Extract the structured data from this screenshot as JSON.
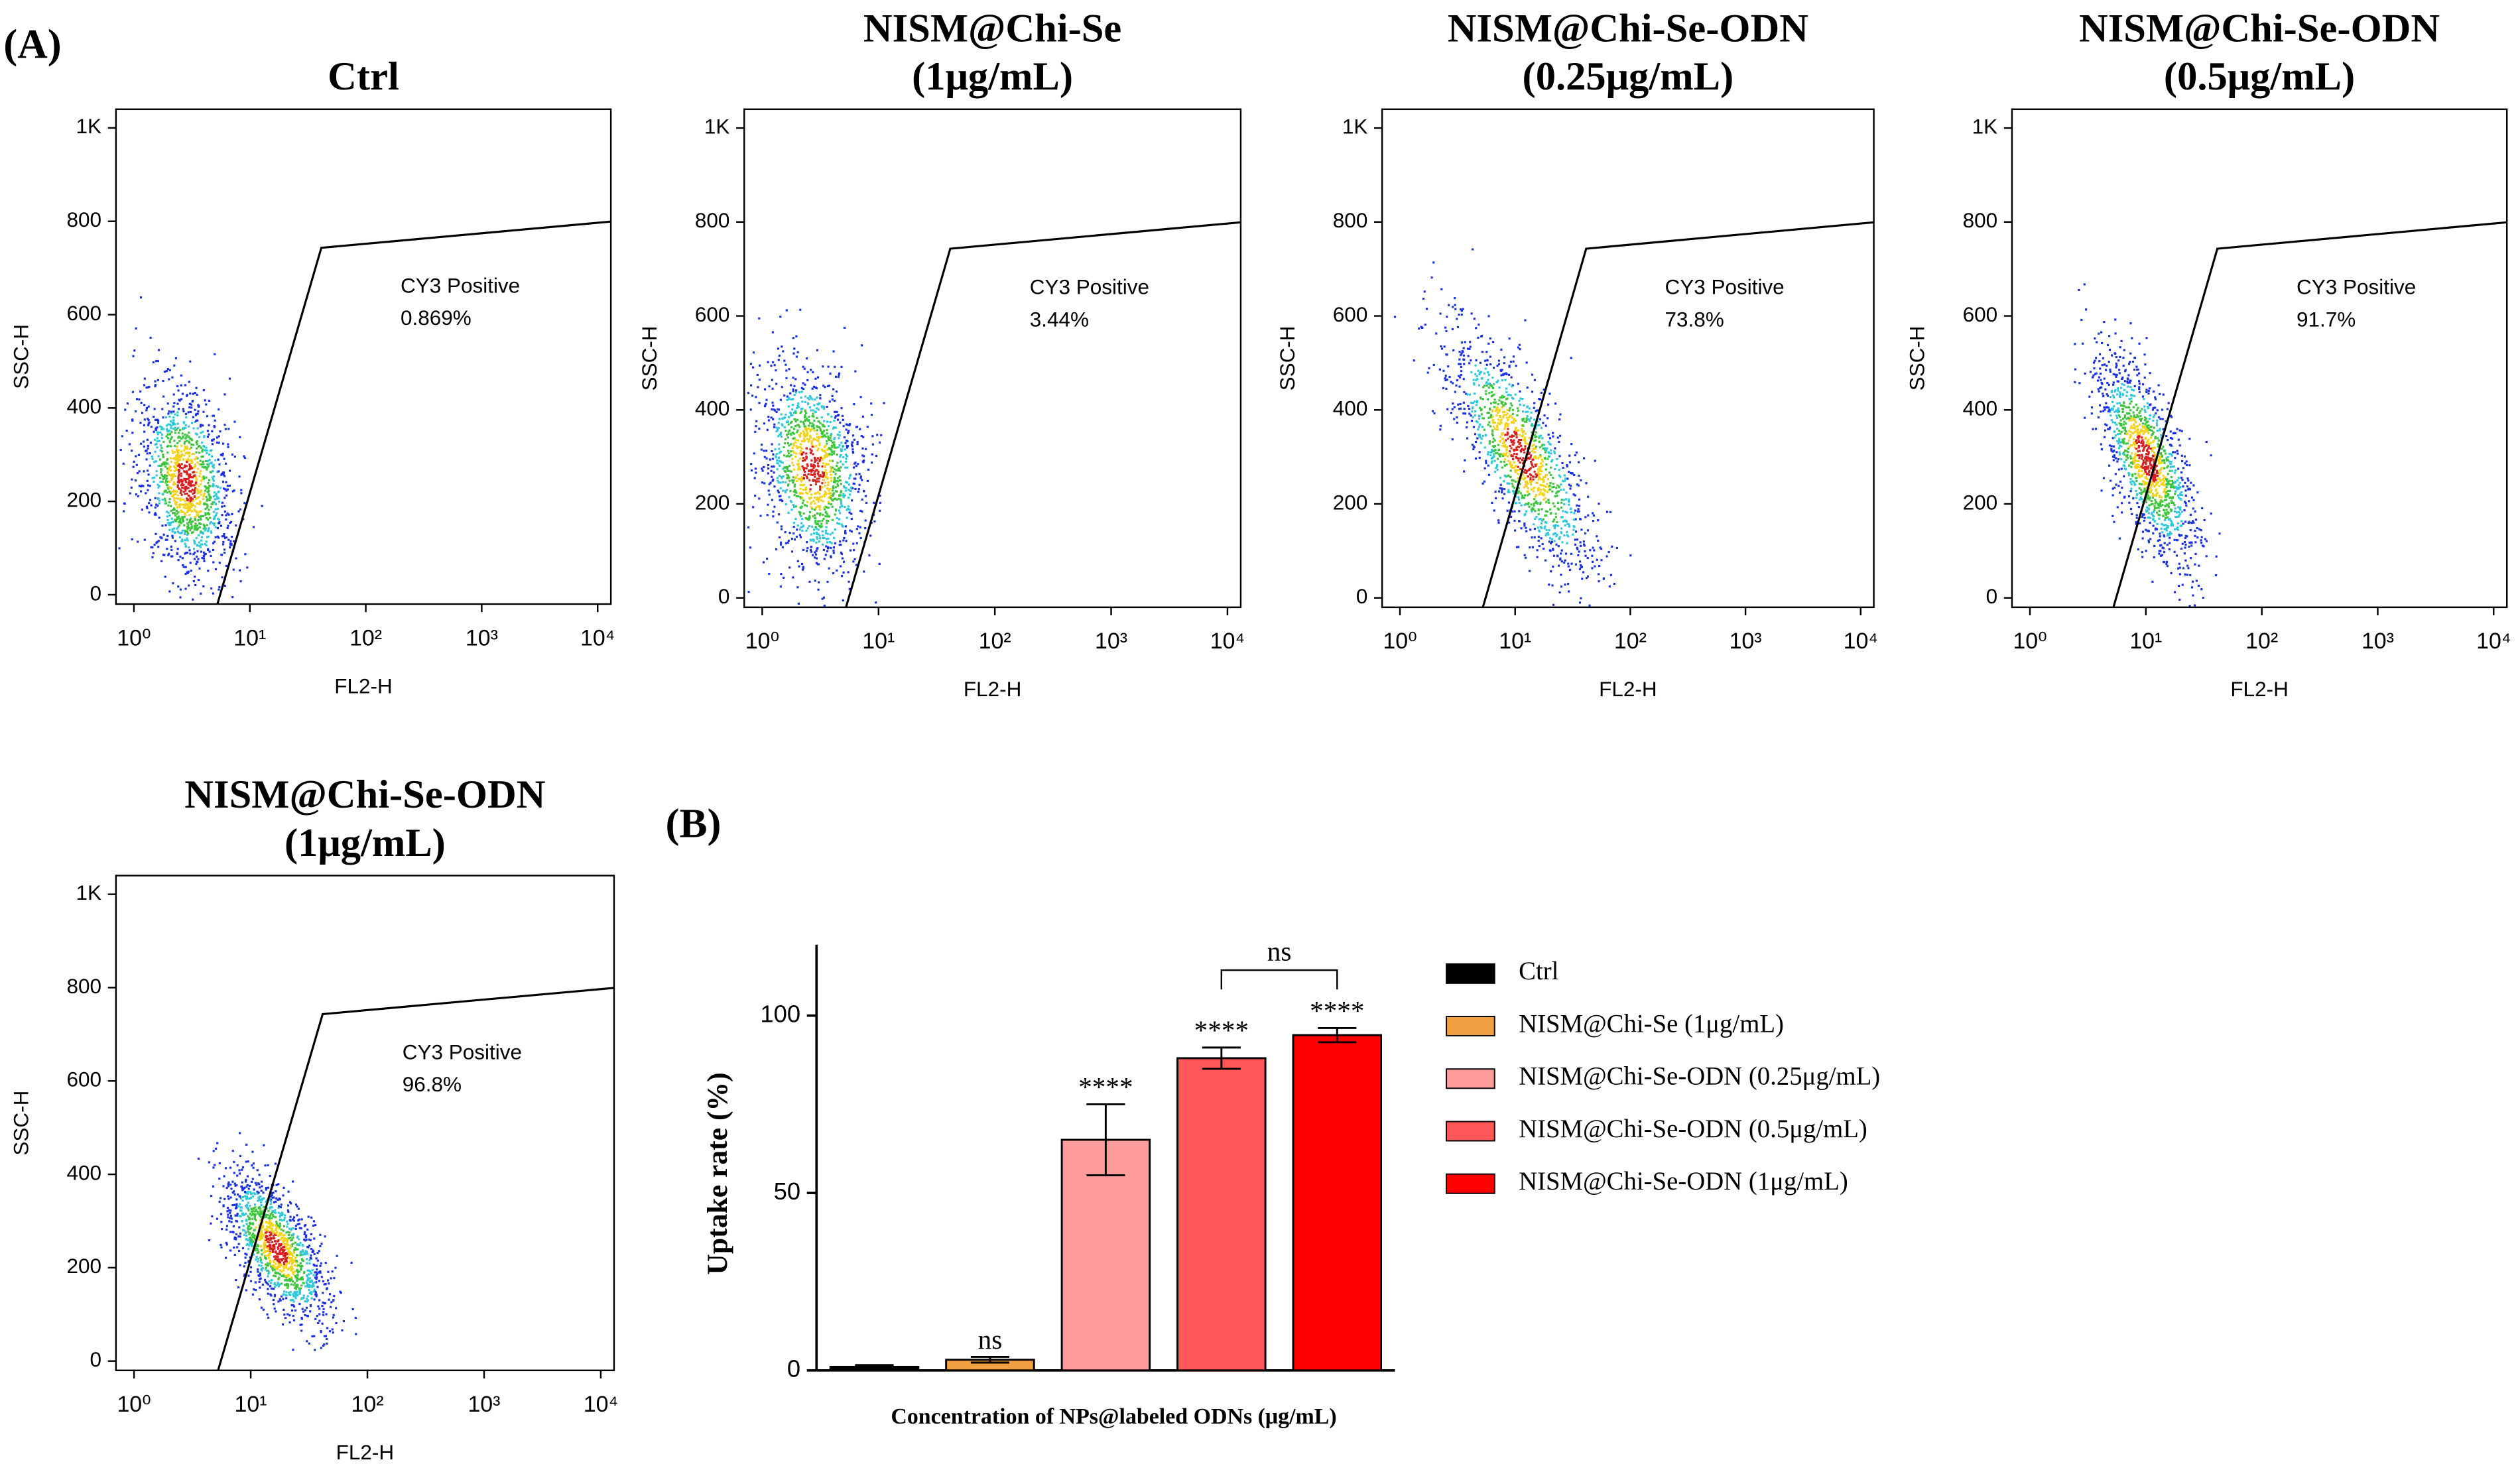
{
  "panel_labels": [
    "(A)",
    "(B)"
  ],
  "chart_data": [
    {
      "type": "flow",
      "title": [
        "Ctrl"
      ],
      "xlabel": "FL2-H",
      "ylabel": "SSC-H",
      "xscale": "log",
      "xlim": [
        0.7,
        13000
      ],
      "xticks": [
        {
          "value": 1,
          "label": "10⁰"
        },
        {
          "value": 10,
          "label": "10¹"
        },
        {
          "value": 100,
          "label": "10²"
        },
        {
          "value": 1000,
          "label": "10³"
        },
        {
          "value": 10000,
          "label": "10⁴"
        }
      ],
      "ylim": [
        -20,
        1040
      ],
      "yticks": [
        0,
        200,
        400,
        600,
        800,
        {
          "value": 1000,
          "label": "1K"
        }
      ],
      "annotation": {
        "text": "CY3 Positive",
        "value": 0.869,
        "value_label": "0.869%"
      }
    },
    {
      "type": "flow",
      "title": [
        "NISM@Chi-Se",
        "(1μg/mL)"
      ],
      "xlabel": "FL2-H",
      "ylabel": "SSC-H",
      "xscale": "log",
      "xlim": [
        0.7,
        13000
      ],
      "xticks": [
        {
          "value": 1,
          "label": "10⁰"
        },
        {
          "value": 10,
          "label": "10¹"
        },
        {
          "value": 100,
          "label": "10²"
        },
        {
          "value": 1000,
          "label": "10³"
        },
        {
          "value": 10000,
          "label": "10⁴"
        }
      ],
      "ylim": [
        -20,
        1040
      ],
      "yticks": [
        0,
        200,
        400,
        600,
        800,
        {
          "value": 1000,
          "label": "1K"
        }
      ],
      "annotation": {
        "text": "CY3 Positive",
        "value": 3.44,
        "value_label": "3.44%"
      }
    },
    {
      "type": "flow",
      "title": [
        "NISM@Chi-Se-ODN",
        "(0.25μg/mL)"
      ],
      "xlabel": "FL2-H",
      "ylabel": "SSC-H",
      "xscale": "log",
      "xlim": [
        0.7,
        13000
      ],
      "xticks": [
        {
          "value": 1,
          "label": "10⁰"
        },
        {
          "value": 10,
          "label": "10¹"
        },
        {
          "value": 100,
          "label": "10²"
        },
        {
          "value": 1000,
          "label": "10³"
        },
        {
          "value": 10000,
          "label": "10⁴"
        }
      ],
      "ylim": [
        -20,
        1040
      ],
      "yticks": [
        0,
        200,
        400,
        600,
        800,
        {
          "value": 1000,
          "label": "1K"
        }
      ],
      "annotation": {
        "text": "CY3 Positive",
        "value": 73.8,
        "value_label": "73.8%"
      }
    },
    {
      "type": "flow",
      "title": [
        "NISM@Chi-Se-ODN",
        "(0.5μg/mL)"
      ],
      "xlabel": "FL2-H",
      "ylabel": "SSC-H",
      "xscale": "log",
      "xlim": [
        0.7,
        13000
      ],
      "xticks": [
        {
          "value": 1,
          "label": "10⁰"
        },
        {
          "value": 10,
          "label": "10¹"
        },
        {
          "value": 100,
          "label": "10²"
        },
        {
          "value": 1000,
          "label": "10³"
        },
        {
          "value": 10000,
          "label": "10⁴"
        }
      ],
      "ylim": [
        -20,
        1040
      ],
      "yticks": [
        0,
        200,
        400,
        600,
        800,
        {
          "value": 1000,
          "label": "1K"
        }
      ],
      "annotation": {
        "text": "CY3 Positive",
        "value": 91.7,
        "value_label": "91.7%"
      }
    },
    {
      "type": "flow",
      "title": [
        "NISM@Chi-Se-ODN",
        "(1μg/mL)"
      ],
      "xlabel": "FL2-H",
      "ylabel": "SSC-H",
      "xscale": "log",
      "xlim": [
        0.7,
        13000
      ],
      "xticks": [
        {
          "value": 1,
          "label": "10⁰"
        },
        {
          "value": 10,
          "label": "10¹"
        },
        {
          "value": 100,
          "label": "10²"
        },
        {
          "value": 1000,
          "label": "10³"
        },
        {
          "value": 10000,
          "label": "10⁴"
        }
      ],
      "ylim": [
        -20,
        1040
      ],
      "yticks": [
        0,
        200,
        400,
        600,
        800,
        {
          "value": 1000,
          "label": "1K"
        }
      ],
      "annotation": {
        "text": "CY3 Positive",
        "value": 96.8,
        "value_label": "96.8%"
      }
    },
    {
      "type": "bar",
      "ylabel": "Uptake rate (%)",
      "xlabel": "Concentration of NPs@labeled ODNs (μg/mL)",
      "categories": [
        "Ctrl",
        "NISM@Chi-Se (1μg/mL)",
        "NISM@Chi-Se-ODN (0.25μg/mL)",
        "NISM@Chi-Se-ODN (0.5μg/mL)",
        "NISM@Chi-Se-ODN (1μg/mL)"
      ],
      "values": [
        1,
        3,
        65,
        88,
        94.5
      ],
      "errors": [
        0.5,
        0.8,
        10,
        3,
        2
      ],
      "colors": [
        "#000000",
        "#f0a040",
        "#ff9b9b",
        "#ff5757",
        "#ff0000"
      ],
      "significance": [
        null,
        "ns",
        "****",
        "****",
        "****"
      ],
      "comparisons": [
        {
          "label": "ns",
          "between": [
            3,
            4
          ]
        }
      ],
      "ylim": [
        0,
        120
      ],
      "yticks": [
        0,
        50,
        100
      ],
      "legend": "right"
    }
  ]
}
